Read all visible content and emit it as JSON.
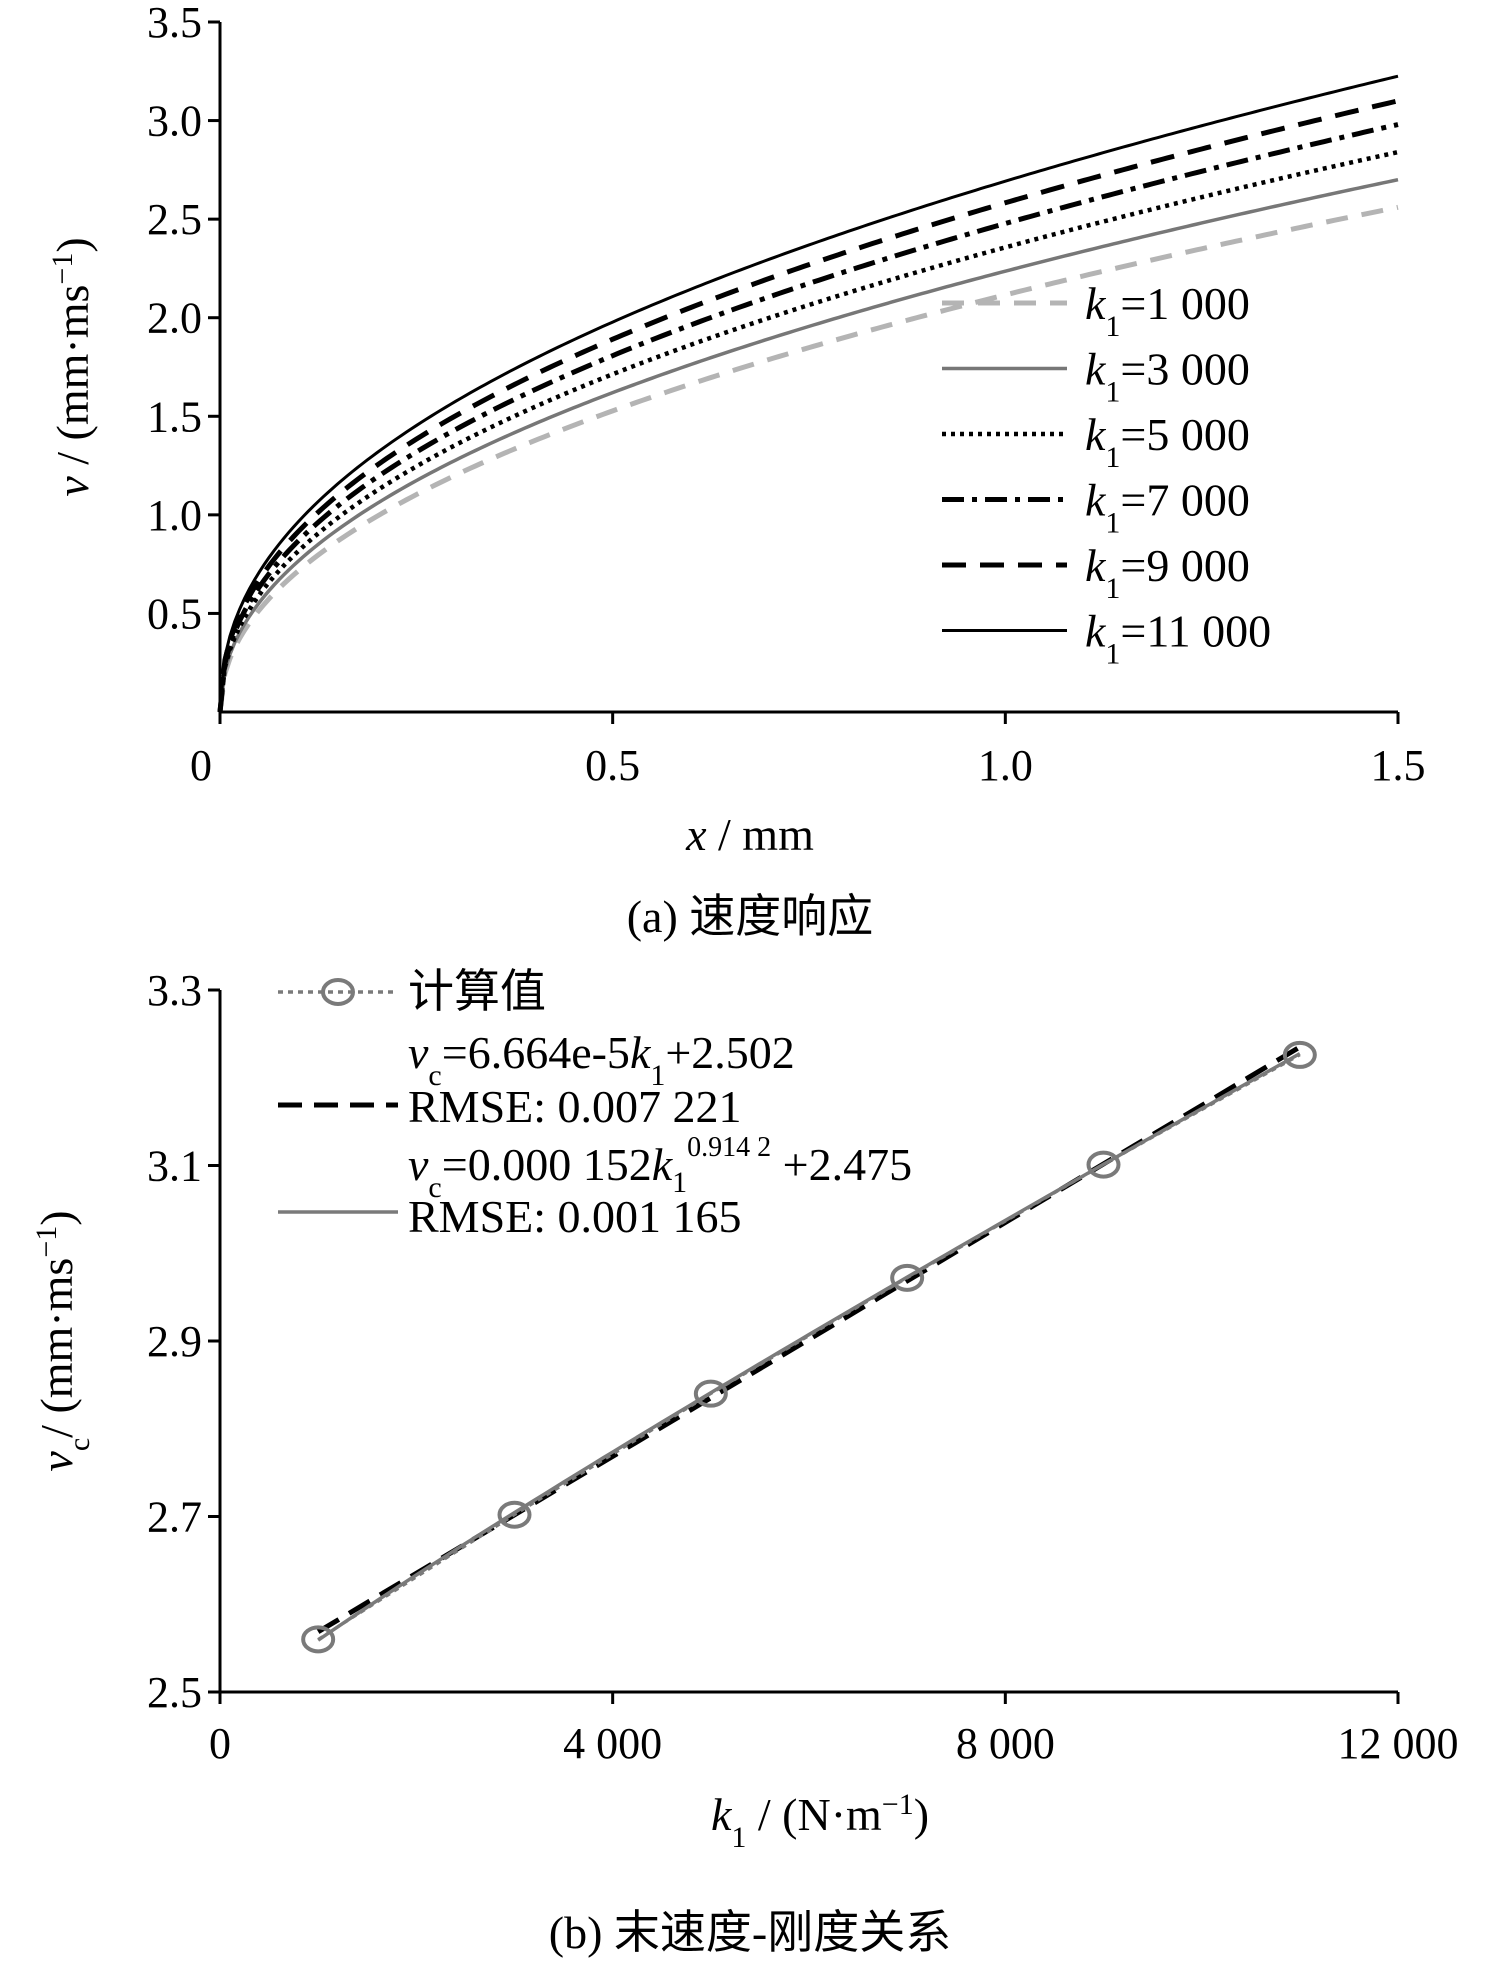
{
  "chart_data": [
    {
      "id": "a",
      "type": "line",
      "caption": "(a)  速度响应",
      "xlabel": {
        "var": "x",
        "unit": " / mm"
      },
      "ylabel": {
        "var": "v",
        "unit_open": " / (mm·ms",
        "sup": "−1",
        "unit_close": ")"
      },
      "xlim": [
        0,
        1.5
      ],
      "ylim": [
        0,
        3.5
      ],
      "xticks": [
        {
          "v": 0,
          "label": "0"
        },
        {
          "v": 0.5,
          "label": "0.5"
        },
        {
          "v": 1.0,
          "label": "1.0"
        },
        {
          "v": 1.5,
          "label": "1.5"
        }
      ],
      "yticks": [
        {
          "v": 0.5,
          "label": "0.5"
        },
        {
          "v": 1.0,
          "label": "1.0"
        },
        {
          "v": 1.5,
          "label": "1.5"
        },
        {
          "v": 2.0,
          "label": "2.0"
        },
        {
          "v": 2.5,
          "label": "2.5"
        },
        {
          "v": 3.0,
          "label": "3.0"
        },
        {
          "v": 3.5,
          "label": "3.5"
        }
      ],
      "curve_model": "v = vc * (x / 1.5)^p",
      "series": [
        {
          "name": "k1=1 000",
          "k_var": "k",
          "k_sub": "1",
          "k_value": "=1 000",
          "vc": 2.56,
          "p": 0.47,
          "color": "#b4b4b4",
          "dash": "22 14",
          "width": 5
        },
        {
          "name": "k1=3 000",
          "k_var": "k",
          "k_sub": "1",
          "k_value": "=3 000",
          "vc": 2.7,
          "p": 0.465,
          "color": "#777777",
          "dash": "",
          "width": 3.5
        },
        {
          "name": "k1=5 000",
          "k_var": "k",
          "k_sub": "1",
          "k_value": "=5 000",
          "vc": 2.84,
          "p": 0.46,
          "color": "#000000",
          "dash": "4 5",
          "width": 4.5
        },
        {
          "name": "k1=7 000",
          "k_var": "k",
          "k_sub": "1",
          "k_value": "=7 000",
          "vc": 2.98,
          "p": 0.455,
          "color": "#000000",
          "dash": "22 8 5 8",
          "width": 5
        },
        {
          "name": "k1=9 000",
          "k_var": "k",
          "k_sub": "1",
          "k_value": "=9 000",
          "vc": 3.1,
          "p": 0.45,
          "color": "#000000",
          "dash": "24 14",
          "width": 5
        },
        {
          "name": "k1=11 000",
          "k_var": "k",
          "k_sub": "1",
          "k_value": "=11 000",
          "vc": 3.225,
          "p": 0.445,
          "color": "#000000",
          "dash": "",
          "width": 3
        }
      ],
      "legend_position": "center-right"
    },
    {
      "id": "b",
      "type": "line",
      "caption": "(b)  末速度-刚度关系",
      "xlabel": {
        "var": "k",
        "sub": "1",
        "unit_open": " / (N·m",
        "sup": "−1",
        "unit_close": ")"
      },
      "ylabel": {
        "var": "v",
        "sub": "c",
        "unit_open": "/ (mm·ms",
        "sup": "−1",
        "unit_close": ")"
      },
      "xlim": [
        0,
        12000
      ],
      "ylim": [
        2.5,
        3.3
      ],
      "xticks": [
        {
          "v": 0,
          "label": "0"
        },
        {
          "v": 4000,
          "label": "4 000"
        },
        {
          "v": 8000,
          "label": "8 000"
        },
        {
          "v": 12000,
          "label": "12 000"
        }
      ],
      "yticks": [
        {
          "v": 2.5,
          "label": "2.5"
        },
        {
          "v": 2.7,
          "label": "2.7"
        },
        {
          "v": 2.9,
          "label": "2.9"
        },
        {
          "v": 3.1,
          "label": "3.1"
        },
        {
          "v": 3.3,
          "label": "3.3"
        }
      ],
      "computed": {
        "name": "计算值",
        "x": [
          1000,
          3000,
          5000,
          7000,
          9000,
          11000
        ],
        "y": [
          2.56,
          2.702,
          2.84,
          2.972,
          3.101,
          3.226
        ],
        "color": "#7a7a7a"
      },
      "linear_fit": {
        "formula_var": "v",
        "formula_sub": "c",
        "formula_main": "=6.664e-5",
        "formula_k": "k",
        "formula_k_sub": "1",
        "formula_tail": "+2.502",
        "rmse": "RMSE: 0.007 221",
        "slope": 6.664e-05,
        "intercept": 2.502,
        "color": "#000000"
      },
      "power_fit": {
        "formula_var": "v",
        "formula_sub": "c",
        "formula_main": "=0.000 152",
        "formula_k": "k",
        "formula_k_sub": "1",
        "formula_exp": "0.914 2",
        "formula_tail": " +2.475",
        "rmse": "RMSE: 0.001 165",
        "coef": 0.000152,
        "exponent": 0.9142,
        "intercept": 2.475,
        "color": "#7a7a7a"
      },
      "legend_position": "top-left"
    }
  ]
}
